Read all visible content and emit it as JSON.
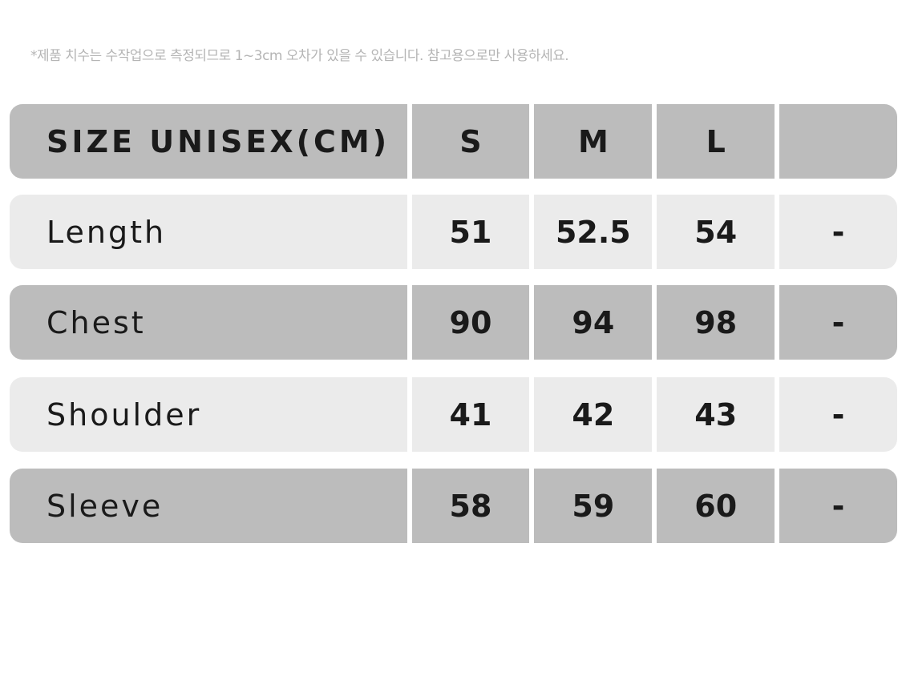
{
  "note": "*제품 치수는 수작업으로 측정되므로 1~3cm 오차가 있을 수 있습니다. 참고용으로만 사용하세요.",
  "header": {
    "label": "SIZE UNISEX(CM)",
    "sizes": [
      "S",
      "M",
      "L",
      ""
    ]
  },
  "rows": [
    {
      "label": "Length",
      "values": [
        "51",
        "52.5",
        "54",
        "-"
      ]
    },
    {
      "label": "Chest",
      "values": [
        "90",
        "94",
        "98",
        "-"
      ]
    },
    {
      "label": "Shoulder",
      "values": [
        "41",
        "42",
        "43",
        "-"
      ]
    },
    {
      "label": "Sleeve",
      "values": [
        "58",
        "59",
        "60",
        "-"
      ]
    }
  ],
  "colors": {
    "dark_row": "#bcbcbc",
    "light_row": "#ebebeb"
  }
}
